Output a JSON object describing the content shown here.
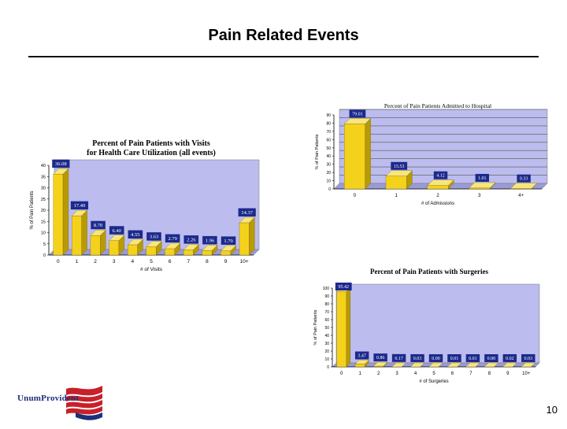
{
  "slide": {
    "title": "Pain Related Events",
    "page_number": "10",
    "logo_text": "UnumProvident"
  },
  "colors": {
    "plot_bg": "#bcbcee",
    "bar_front": "#f4d21c",
    "bar_side": "#b89a06",
    "bar_top": "#f9e67a",
    "label_bg": "#1c2a8c",
    "label_text": "#ffffff",
    "axis": "#000000",
    "logo_blue": "#1d2f78",
    "logo_red": "#c8202a"
  },
  "chart_data": [
    {
      "id": "visits",
      "type": "bar",
      "title": "Percent of Pain Patients with Visits for Health Care Utilization (all events)",
      "title_lines": [
        "Percent of Pain Patients with Visits",
        "for Health Care Utilization (all events)"
      ],
      "xlabel": "# of Visits",
      "ylabel": "% of Pain Patients",
      "categories": [
        "0",
        "1",
        "2",
        "3",
        "4",
        "5",
        "6",
        "7",
        "8",
        "9",
        "10+"
      ],
      "values": [
        36.08,
        17.49,
        8.7,
        6.4,
        4.55,
        3.63,
        2.79,
        2.26,
        1.96,
        1.79,
        14.37
      ],
      "data_labels": [
        "36.08",
        "17.49",
        "8.70",
        "6.40",
        "4.55",
        "3.63",
        "2.79",
        "2.26",
        "1.96",
        "1.79",
        "14.37"
      ],
      "ylim": [
        0,
        40
      ],
      "yticks": [
        "0",
        "5",
        "10",
        "15",
        "20",
        "25",
        "30",
        "35",
        "40"
      ],
      "grid": false
    },
    {
      "id": "admitted",
      "type": "bar",
      "title": "Percent of Pain Patients Admitted to Hospital",
      "title_lines": [
        "Percent of Pain Patients Admitted to Hospital"
      ],
      "xlabel": "# of Admissions",
      "ylabel": "% of Pain Patients",
      "categories": [
        "0",
        "1",
        "2",
        "3",
        "4+"
      ],
      "values": [
        79.01,
        15.53,
        4.12,
        1.01,
        0.33
      ],
      "data_labels": [
        "79.01",
        "15.53",
        "4.12",
        "1.01",
        "0.33"
      ],
      "ylim": [
        0,
        90
      ],
      "yticks": [
        "0",
        "10",
        "20",
        "30",
        "40",
        "50",
        "60",
        "70",
        "80",
        "90"
      ],
      "grid": true
    },
    {
      "id": "surgeries",
      "type": "bar",
      "title": "Percent of Pain Patients with Surgeries",
      "title_lines": [
        "Percent of Pain Patients with Surgeries"
      ],
      "xlabel": "# of Surgeries",
      "ylabel": "% of Pain Patients",
      "categories": [
        "0",
        "1",
        "2",
        "3",
        "4",
        "5",
        "6",
        "7",
        "8",
        "9",
        "10+"
      ],
      "values": [
        95.42,
        3.47,
        0.86,
        0.17,
        0.03,
        0.0,
        0.01,
        0.01,
        0.0,
        0.02,
        0.03
      ],
      "data_labels": [
        "95.42",
        "3.47",
        "0.86",
        "0.17",
        "0.03",
        "0.00",
        "0.01",
        "0.01",
        "0.00",
        "0.02",
        "0.03"
      ],
      "ylim": [
        0,
        100
      ],
      "yticks": [
        "0",
        "10",
        "20",
        "30",
        "40",
        "50",
        "60",
        "70",
        "80",
        "90",
        "100"
      ],
      "grid": false
    }
  ]
}
